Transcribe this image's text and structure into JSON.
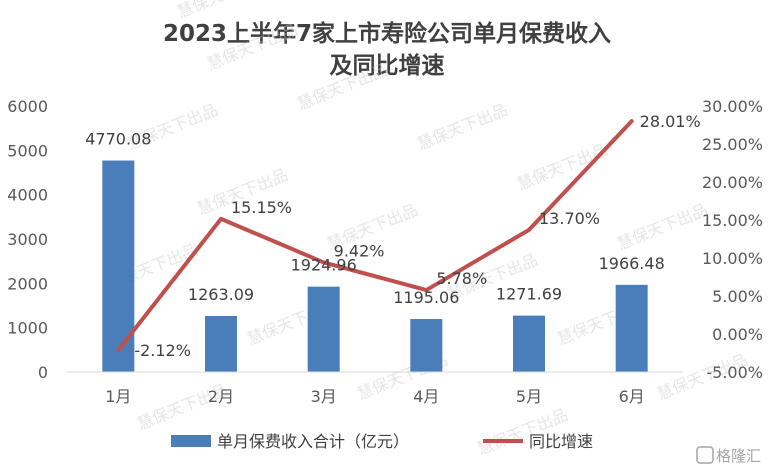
{
  "chart_data": {
    "type": "bar+line",
    "title_line1": "2023上半年7家上市寿险公司单月保费收入",
    "title_line2": "及同比增速",
    "categories": [
      "1月",
      "2月",
      "3月",
      "4月",
      "5月",
      "6月"
    ],
    "series": [
      {
        "name": "单月保费收入合计（亿元）",
        "type": "bar",
        "axis": "left",
        "values": [
          4770.08,
          1263.09,
          1924.96,
          1195.06,
          1271.69,
          1966.48
        ],
        "value_labels": [
          "4770.08",
          "1263.09",
          "1924.96",
          "1195.06",
          "1271.69",
          "1966.48"
        ],
        "color": "#4a7ebb"
      },
      {
        "name": "同比增速",
        "type": "line",
        "axis": "right",
        "values": [
          -2.12,
          15.15,
          9.42,
          5.78,
          13.7,
          28.01
        ],
        "value_labels": [
          "-2.12%",
          "15.15%",
          "9.42%",
          "5.78%",
          "13.70%",
          "28.01%"
        ],
        "color": "#c0504d"
      }
    ],
    "y_left": {
      "min": 0,
      "max": 6000,
      "step": 1000,
      "ticks": [
        "0",
        "1000",
        "2000",
        "3000",
        "4000",
        "5000",
        "6000"
      ]
    },
    "y_right": {
      "min": -5,
      "max": 30,
      "step": 5,
      "ticks": [
        "-5.00%",
        "0.00%",
        "5.00%",
        "10.00%",
        "15.00%",
        "20.00%",
        "25.00%",
        "30.00%"
      ]
    },
    "grid": false,
    "legend_position": "bottom"
  },
  "watermark": "慧保天下出品",
  "brand": "格隆汇"
}
